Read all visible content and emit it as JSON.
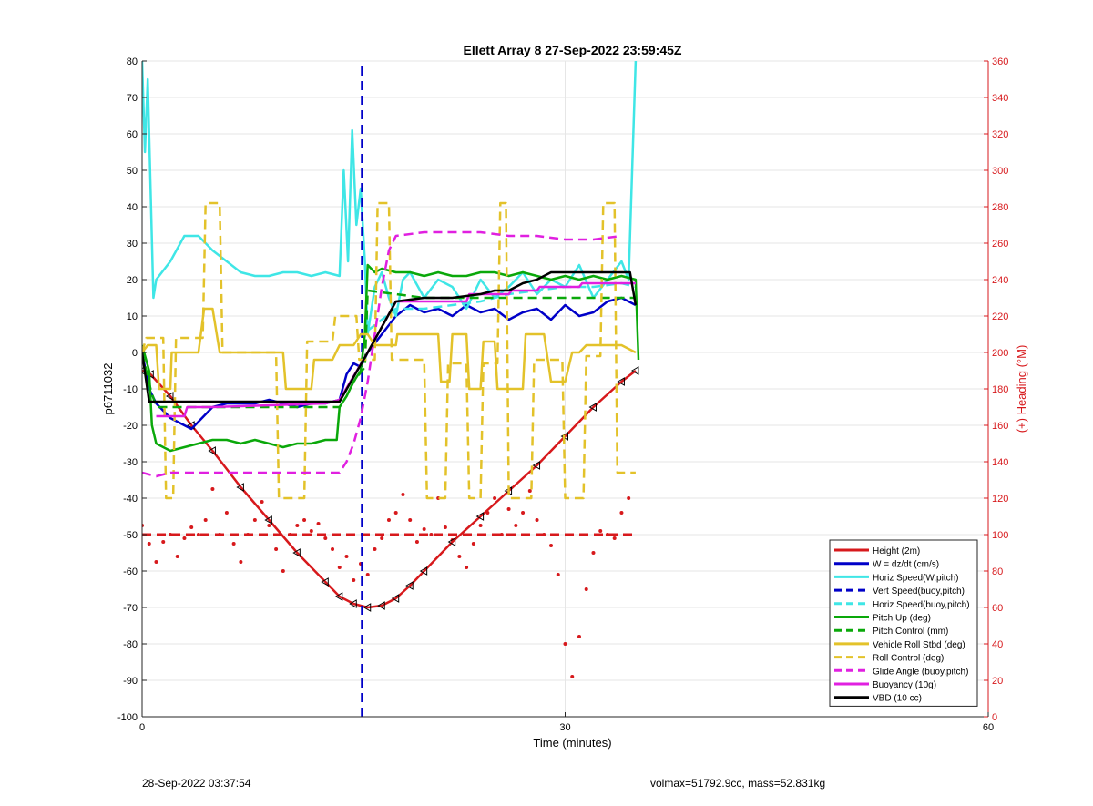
{
  "footer": {
    "left": "28-Sep-2022 03:37:54",
    "right": "volmax=51792.9cc, mass=52.831kg"
  },
  "chart_data": {
    "type": "line",
    "title": "Ellett Array 8 27-Sep-2022 23:59:45Z",
    "xlabel": "Time (minutes)",
    "ylabel": "p6711032",
    "y2label": "(+) Heading (°M)",
    "xlim": [
      0,
      60
    ],
    "ylim": [
      -100,
      80
    ],
    "y2lim": [
      0,
      360
    ],
    "xticks": [
      0,
      30,
      60
    ],
    "yticks": [
      -100,
      -90,
      -80,
      -70,
      -60,
      -50,
      -40,
      -30,
      -20,
      -10,
      0,
      10,
      20,
      30,
      40,
      50,
      60,
      70,
      80
    ],
    "y2ticks": [
      0,
      20,
      40,
      60,
      80,
      100,
      120,
      140,
      160,
      180,
      200,
      220,
      240,
      260,
      280,
      300,
      320,
      340,
      360
    ],
    "grid": true,
    "legend_position": "bottom-right",
    "colors": {
      "red": "#d7191c",
      "blue": "#0000c8",
      "cyan": "#3fe6e6",
      "green": "#0aa80a",
      "yellow": "#e3c22a",
      "magenta": "#e020e0",
      "black": "#000000",
      "right_axis": "#d7191c"
    },
    "series": [
      {
        "name": "Height (2m)",
        "color": "#d7191c",
        "dash": "solid",
        "marker": "triangle",
        "x": [
          0,
          0.6,
          2,
          3.5,
          5,
          7,
          9,
          11,
          13,
          14,
          15,
          16,
          17,
          18,
          19,
          20,
          22,
          24,
          26,
          28,
          30,
          32,
          34,
          35
        ],
        "y": [
          -5,
          -6,
          -12,
          -20,
          -27,
          -37,
          -46,
          -55,
          -63,
          -67,
          -69,
          -70,
          -69.5,
          -67.5,
          -64,
          -60,
          -52,
          -45,
          -38,
          -31,
          -23,
          -15,
          -8,
          -5
        ]
      },
      {
        "name": "W = dz/dt (cm/s)",
        "color": "#0000c8",
        "dash": "solid",
        "marker": "none",
        "x": [
          0,
          0.5,
          1,
          2,
          3,
          3.5,
          4,
          5,
          6,
          7,
          8,
          9,
          10,
          11,
          12,
          13,
          14,
          14.5,
          15,
          15.5,
          16,
          17,
          18,
          19,
          20,
          21,
          22,
          23,
          24,
          25,
          26,
          27,
          28,
          29,
          30,
          31,
          32,
          33,
          34,
          35
        ],
        "y": [
          0,
          -10,
          -14,
          -18,
          -20,
          -21,
          -19,
          -15,
          -14,
          -14,
          -14,
          -13,
          -14,
          -15,
          -14,
          -14,
          -13,
          -6,
          -3,
          -4,
          0,
          5,
          10,
          13,
          11,
          12,
          10,
          13,
          11,
          12,
          9,
          11,
          12,
          9,
          13,
          10,
          11,
          14,
          15,
          13
        ]
      },
      {
        "name": "Horiz Speed(W,pitch)",
        "color": "#3fe6e6",
        "dash": "solid",
        "marker": "none",
        "x": [
          0,
          0.2,
          0.4,
          0.8,
          1,
          2,
          3,
          4,
          5,
          6,
          7,
          8,
          9,
          10,
          11,
          12,
          13,
          14,
          14.3,
          14.6,
          14.9,
          15.2,
          15.5,
          15.8,
          16,
          16.5,
          17,
          17.5,
          18,
          18.5,
          19,
          20,
          21,
          22,
          23,
          24,
          25,
          26,
          27,
          28,
          29,
          30,
          31,
          32,
          33,
          34,
          34.5,
          35
        ],
        "y": [
          80,
          55,
          75,
          15,
          20,
          25,
          32,
          32,
          28,
          25,
          22,
          21,
          21,
          22,
          22,
          21,
          22,
          21,
          50,
          25,
          61,
          35,
          45,
          25,
          5,
          18,
          22,
          15,
          10,
          20,
          22,
          15,
          20,
          18,
          12,
          20,
          15,
          18,
          22,
          16,
          20,
          18,
          24,
          15,
          20,
          25,
          20,
          80
        ]
      },
      {
        "name": "Vert Speed(buoy,pitch)",
        "color": "#0000c8",
        "dash": "dashed",
        "marker": "none",
        "x": [
          15.6,
          15.6
        ],
        "y": [
          -100,
          80
        ]
      },
      {
        "name": "Horiz Speed(buoy,pitch)",
        "color": "#3fe6e6",
        "dash": "dashed",
        "marker": "none",
        "x": [
          16,
          18,
          20,
          22,
          24,
          26,
          28,
          30,
          32,
          34,
          35
        ],
        "y": [
          6,
          12,
          12,
          13,
          14,
          16,
          17,
          18,
          18,
          19,
          18
        ]
      },
      {
        "name": "Pitch Up (deg)",
        "color": "#0aa80a",
        "dash": "solid",
        "marker": "none",
        "x": [
          0,
          0.5,
          0.7,
          1,
          2,
          3,
          4,
          5,
          6,
          7,
          8,
          9,
          10,
          11,
          12,
          13,
          13.8,
          14,
          14.5,
          15,
          15.5,
          15.8,
          16,
          16.5,
          17,
          18,
          19,
          20,
          21,
          22,
          23,
          24,
          25,
          26,
          27,
          28,
          29,
          30,
          31,
          32,
          33,
          34,
          35,
          35.2
        ],
        "y": [
          2,
          -5,
          -20,
          -25,
          -27,
          -26,
          -25,
          -24,
          -24,
          -25,
          -24,
          -25,
          -26,
          -25,
          -25,
          -24,
          -24,
          -15,
          -12,
          -8,
          -5,
          5,
          24,
          22,
          23,
          22,
          22,
          21,
          22,
          21,
          21,
          22,
          22,
          21,
          22,
          21,
          20,
          21,
          20,
          21,
          20,
          21,
          20,
          -2
        ]
      },
      {
        "name": "Pitch Control (mm)",
        "color": "#0aa80a",
        "dash": "dashed",
        "marker": "none",
        "x": [
          0,
          0.6,
          1,
          5,
          10,
          14,
          14.5,
          15,
          15.8,
          16,
          20,
          25,
          30,
          35
        ],
        "y": [
          0,
          -10,
          -15,
          -15,
          -15,
          -15,
          -12,
          -8,
          -4,
          17,
          15,
          15,
          15,
          15
        ]
      },
      {
        "name": "Vehicle Roll Stbd (deg)",
        "color": "#e3c22a",
        "dash": "solid",
        "marker": "none",
        "x": [
          0,
          0.4,
          1,
          1.2,
          2,
          2.1,
          4,
          4.4,
          5,
          5.5,
          10,
          10.2,
          12,
          12.2,
          13.5,
          14,
          15,
          15.5,
          16,
          16.5,
          17,
          18,
          18.1,
          20,
          21,
          21.2,
          21.8,
          22,
          23,
          23.2,
          24,
          24.2,
          25,
          25.2,
          27,
          27.2,
          28.5,
          29,
          30,
          30.5,
          31,
          31.5,
          33,
          34,
          35
        ],
        "y": [
          0,
          2,
          2,
          -10,
          -10,
          0,
          0,
          12,
          12,
          0,
          0,
          -10,
          -10,
          -2,
          -2,
          2,
          2,
          5,
          5,
          2,
          2,
          2,
          5,
          5,
          5,
          -8,
          -8,
          5,
          5,
          -10,
          -10,
          3,
          3,
          -10,
          -10,
          5,
          5,
          -8,
          -8,
          0,
          0,
          2,
          2,
          2,
          0
        ]
      },
      {
        "name": "Roll Control (deg)",
        "color": "#e3c22a",
        "dash": "dashed",
        "marker": "none",
        "x": [
          0,
          0.3,
          1.5,
          1.7,
          2.2,
          2.4,
          4.3,
          4.5,
          5.5,
          5.7,
          9.5,
          9.7,
          11.5,
          11.7,
          13.5,
          13.7,
          15.2,
          15.4,
          16.5,
          16.7,
          17.5,
          17.7,
          20,
          20.2,
          21.5,
          21.7,
          23,
          23.2,
          24,
          24.2,
          25.2,
          25.4,
          25.8,
          26,
          27.6,
          27.8,
          29.8,
          30,
          31.3,
          31.5,
          32.5,
          32.7,
          33.5,
          33.7,
          35
        ],
        "y": [
          0,
          4,
          4,
          -40,
          -40,
          4,
          4,
          41,
          41,
          0,
          0,
          -40,
          -40,
          3,
          3,
          10,
          10,
          -2,
          -2,
          41,
          41,
          -2,
          -2,
          -40,
          -40,
          -3,
          -3,
          -40,
          -40,
          -3,
          -3,
          41,
          41,
          -40,
          -40,
          -2,
          -2,
          -40,
          -40,
          -1,
          -1,
          41,
          41,
          -33,
          -33
        ]
      },
      {
        "name": "Glide Angle (buoy,pitch)",
        "color": "#e020e0",
        "dash": "dashed",
        "marker": "none",
        "x": [
          0,
          1,
          2,
          4,
          6,
          8,
          10,
          12,
          14,
          14.5,
          15,
          15.5,
          16,
          16.5,
          17,
          17.5,
          18,
          20,
          22,
          24,
          26,
          28,
          30,
          32,
          34
        ],
        "y": [
          -33,
          -34,
          -33,
          -33,
          -33,
          -33,
          -33,
          -33,
          -33,
          -30,
          -25,
          -18,
          -8,
          5,
          18,
          28,
          32,
          33,
          33,
          33,
          32,
          32,
          31,
          31,
          32
        ]
      },
      {
        "name": "Buoyancy (10g)",
        "color": "#e020e0",
        "dash": "solid",
        "marker": "none",
        "x": [
          1,
          3,
          3.2,
          5,
          13,
          14,
          16,
          18,
          20,
          23,
          23.2,
          26,
          26.2,
          28,
          28.2,
          31,
          31.2,
          35
        ],
        "y": [
          -17.5,
          -17.5,
          -15,
          -15,
          -14,
          -13,
          0,
          14,
          14,
          14,
          16,
          16,
          17,
          17,
          18,
          18,
          19,
          19
        ]
      },
      {
        "name": "VBD (10 cc)",
        "color": "#000000",
        "dash": "solid",
        "marker": "none",
        "x": [
          0,
          0.5,
          5,
          10,
          14,
          16,
          18,
          20,
          22,
          24,
          25,
          26,
          27,
          28,
          29,
          30,
          31,
          33,
          34.6,
          35
        ],
        "y": [
          0,
          -13.5,
          -13.5,
          -13.5,
          -13.5,
          0,
          14,
          15,
          15,
          16,
          17,
          17,
          19,
          20,
          22,
          22,
          22,
          22,
          22,
          13
        ]
      }
    ],
    "heading_series": {
      "name": "Heading",
      "color": "#d7191c",
      "axis": "right",
      "style": "dots",
      "x": [
        0,
        0.5,
        1,
        1.5,
        2,
        2.5,
        3,
        3.5,
        4,
        4.5,
        5,
        5.5,
        6,
        6.5,
        7,
        7.5,
        8,
        8.5,
        9,
        9.5,
        10,
        10.5,
        11,
        11.5,
        12,
        12.5,
        13,
        13.5,
        14,
        14.5,
        15,
        15.5,
        16,
        16.5,
        17,
        17.5,
        18,
        18.5,
        19,
        19.5,
        20,
        20.5,
        21,
        21.5,
        22,
        22.5,
        23,
        23.5,
        24,
        24.5,
        25,
        25.5,
        26,
        26.5,
        27,
        27.5,
        28,
        28.5,
        29,
        29.5,
        30,
        30.5,
        31,
        31.5,
        32,
        32.5,
        33,
        33.5,
        34,
        34.5
      ],
      "y": [
        105,
        95,
        85,
        96,
        100,
        88,
        98,
        104,
        100,
        108,
        125,
        100,
        112,
        95,
        85,
        100,
        108,
        118,
        105,
        92,
        80,
        100,
        105,
        108,
        102,
        106,
        98,
        92,
        82,
        88,
        75,
        84,
        78,
        92,
        98,
        108,
        112,
        122,
        108,
        96,
        103,
        100,
        120,
        104,
        97,
        88,
        82,
        95,
        105,
        112,
        120,
        100,
        114,
        105,
        112,
        124,
        108,
        100,
        94,
        78,
        40,
        22,
        44,
        70,
        90,
        102,
        100,
        98,
        112,
        120
      ],
      "dashed_ref": {
        "x": [
          0,
          35
        ],
        "y": [
          100,
          100
        ]
      }
    }
  }
}
